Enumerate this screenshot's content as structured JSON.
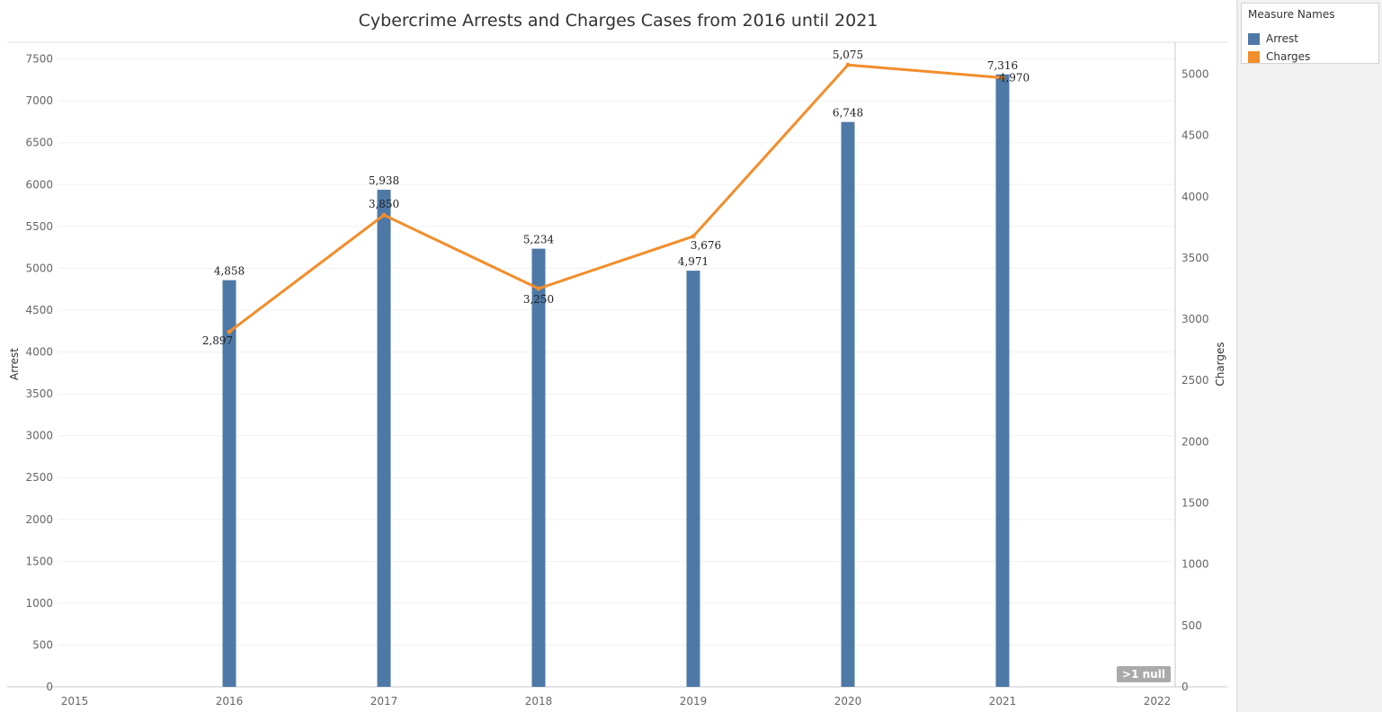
{
  "legend": {
    "title": "Measure Names",
    "items": [
      {
        "label": "Arrest",
        "color": "#4e79a7"
      },
      {
        "label": "Charges",
        "color": "#f28e2b"
      }
    ]
  },
  "null_indicator": ">1 null",
  "chart_data": {
    "type": "bar",
    "title": "Cybercrime Arrests and Charges Cases from 2016 until 2021",
    "x": [
      2016,
      2017,
      2018,
      2019,
      2020,
      2021
    ],
    "x_ticks": [
      2015,
      2016,
      2017,
      2018,
      2019,
      2020,
      2021,
      2022
    ],
    "xlim": [
      2015,
      2022
    ],
    "series": [
      {
        "name": "Arrest",
        "type": "bar",
        "axis": "left",
        "color": "#4e79a7",
        "values": [
          4858,
          5938,
          5234,
          4971,
          6748,
          7316
        ],
        "labels": [
          "4,858",
          "5,938",
          "5,234",
          "4,971",
          "6,748",
          "7,316"
        ]
      },
      {
        "name": "Charges",
        "type": "line",
        "axis": "right",
        "color": "#f28e2b",
        "values": [
          2897,
          3850,
          3250,
          3676,
          5075,
          4970
        ],
        "labels": [
          "2,897",
          "3,850",
          "3,250",
          "3,676",
          "5,075",
          "4,970"
        ]
      }
    ],
    "y_left": {
      "label": "Arrest",
      "ylim": [
        0,
        7700
      ],
      "ticks": [
        0,
        500,
        1000,
        1500,
        2000,
        2500,
        3000,
        3500,
        4000,
        4500,
        5000,
        5500,
        6000,
        6500,
        7000,
        7500
      ]
    },
    "y_right": {
      "label": "Charges",
      "ylim": [
        0,
        5260
      ],
      "ticks": [
        0,
        500,
        1000,
        1500,
        2000,
        2500,
        3000,
        3500,
        4000,
        4500,
        5000
      ]
    },
    "grid": true,
    "legend_position": "right"
  }
}
